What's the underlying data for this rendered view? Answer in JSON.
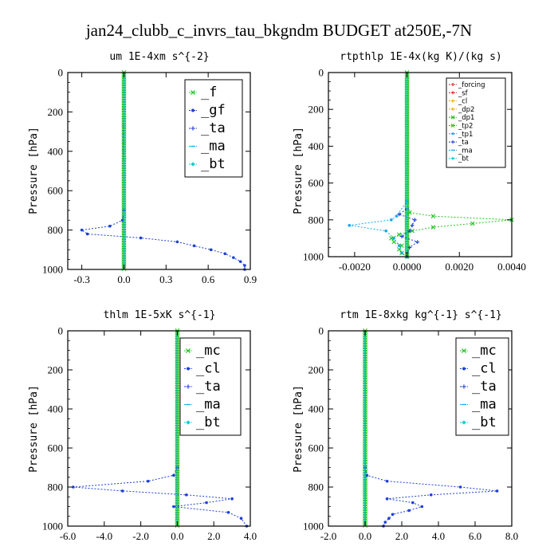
{
  "figure_title": "jan24_clubb_c_invrs_tau_bkgndm  BUDGET at250E,-7N",
  "colors": {
    "green": "#22c422",
    "red": "#e02020",
    "blue": "#1f3fd6",
    "cyan": "#14a8ee",
    "orange": "#f0a800",
    "teal": "#00d0d0"
  },
  "chart_data": [
    {
      "type": "line",
      "title": "um   1E-4xm s^{-2}",
      "ylabel": "Pressure [hPa]",
      "xlim": [
        -0.4,
        0.9
      ],
      "ylim": [
        1000,
        0
      ],
      "xticks": [
        -0.3,
        0.0,
        0.3,
        0.6,
        0.9
      ],
      "xtick_labels": [
        "-0.3",
        "0.0",
        "0.3",
        "0.6",
        "0.9"
      ],
      "yticks": [
        0,
        200,
        400,
        600,
        800,
        1000
      ],
      "ytick_labels": [
        "0",
        "200",
        "400",
        "600",
        "800",
        "1000"
      ],
      "legend_style": "big",
      "legend_position": "top-right",
      "series": [
        {
          "name": "_f",
          "color": "#22c422",
          "marker": "x",
          "pressure": [
            0,
            100,
            200,
            300,
            400,
            500,
            600,
            700,
            750,
            800,
            850,
            900,
            950,
            1000
          ],
          "values": [
            0,
            0,
            0,
            0,
            0,
            0,
            0,
            0,
            0,
            0,
            0,
            0,
            0,
            0
          ]
        },
        {
          "name": "_gf",
          "color": "#1f3fd6",
          "marker": "dot",
          "pressure": [
            0,
            100,
            200,
            300,
            400,
            500,
            600,
            700,
            750,
            780,
            800,
            820,
            840,
            860,
            880,
            900,
            920,
            940,
            960,
            980,
            1000
          ],
          "values": [
            0,
            0,
            0,
            -0.005,
            -0.005,
            0,
            0,
            0,
            -0.01,
            -0.1,
            -0.3,
            -0.26,
            0.12,
            0.38,
            0.5,
            0.62,
            0.72,
            0.78,
            0.83,
            0.86,
            0.86
          ]
        },
        {
          "name": "_ta",
          "color": "#1f3fd6",
          "marker": "plus",
          "pressure": [
            0,
            500,
            1000
          ],
          "values": [
            0,
            0,
            0
          ]
        },
        {
          "name": "_ma",
          "color": "#14a8ee",
          "marker": "dash",
          "pressure": [
            0,
            500,
            1000
          ],
          "values": [
            0,
            0,
            0
          ]
        },
        {
          "name": "_bt",
          "color": "#00d0d0",
          "marker": "diamond",
          "pressure": [
            0,
            500,
            1000
          ],
          "values": [
            0,
            0,
            0
          ]
        }
      ]
    },
    {
      "type": "line",
      "title": "rtpthlp   1E-4x(kg K)/(kg s)",
      "ylabel": "Pressure [hPa]",
      "xlim": [
        -0.003,
        0.004
      ],
      "ylim": [
        1000,
        0
      ],
      "xticks": [
        -0.002,
        0.0,
        0.002,
        0.004
      ],
      "xtick_labels": [
        "-0.0020",
        "0.0000",
        "0.0020",
        "0.0040"
      ],
      "yticks": [
        0,
        200,
        400,
        600,
        800,
        1000
      ],
      "ytick_labels": [
        "0",
        "200",
        "400",
        "600",
        "800",
        "1000"
      ],
      "legend_style": "small",
      "legend_position": "top-right",
      "series": [
        {
          "name": "_forcing",
          "color": "#e02020",
          "marker": "plus",
          "pressure": [
            0,
            200,
            400,
            600,
            800,
            1000
          ],
          "values": [
            0,
            0,
            0,
            0,
            0,
            0
          ]
        },
        {
          "name": "_sf",
          "color": "#e02020",
          "marker": "plus",
          "pressure": [
            0,
            500,
            1000
          ],
          "values": [
            0,
            0,
            0
          ]
        },
        {
          "name": "_cl",
          "color": "#f0a800",
          "marker": "plus",
          "pressure": [
            0,
            500,
            1000
          ],
          "values": [
            0,
            0,
            0
          ]
        },
        {
          "name": "_dp2",
          "color": "#f0a800",
          "marker": "plus",
          "pressure": [
            0,
            500,
            1000
          ],
          "values": [
            0,
            0,
            0
          ]
        },
        {
          "name": "_dp1",
          "color": "#22c422",
          "marker": "x",
          "pressure": [
            0,
            500,
            1000
          ],
          "values": [
            0,
            0,
            0
          ]
        },
        {
          "name": "_tp2",
          "color": "#22c422",
          "marker": "x",
          "pressure": [
            0,
            700,
            760,
            780,
            800,
            820,
            840,
            860,
            880,
            900,
            920,
            940,
            960,
            980,
            1000
          ],
          "values": [
            0,
            0,
            0.0001,
            0.001,
            0.004,
            0.0025,
            0.001,
            0.0002,
            -0.0003,
            -0.0006,
            -0.0005,
            -0.0002,
            -0.0003,
            -0.0002,
            0
          ]
        },
        {
          "name": "_tp1",
          "color": "#14a8ee",
          "marker": "dot",
          "pressure": [
            0,
            700,
            780,
            800,
            830,
            860,
            900,
            940,
            980,
            1000
          ],
          "values": [
            0,
            0,
            -0.0004,
            -0.0006,
            -0.0022,
            -0.0008,
            -0.0005,
            -0.0003,
            -0.0002,
            0
          ]
        },
        {
          "name": "_ta",
          "color": "#1f3fd6",
          "marker": "plus",
          "pressure": [
            0,
            740,
            770,
            800,
            830,
            860,
            890,
            920,
            950,
            980,
            1000
          ],
          "values": [
            0,
            0,
            -0.0003,
            0.0003,
            0.0002,
            0.0001,
            -0.0002,
            0.0004,
            0.0001,
            0,
            0
          ]
        },
        {
          "name": "_ma",
          "color": "#14a8ee",
          "marker": "dash",
          "pressure": [
            0,
            500,
            1000
          ],
          "values": [
            0,
            0,
            0
          ]
        },
        {
          "name": "_bt",
          "color": "#00d0d0",
          "marker": "diamond",
          "pressure": [
            0,
            500,
            1000
          ],
          "values": [
            0,
            0,
            0
          ]
        }
      ]
    },
    {
      "type": "line",
      "title": "thlm   1E-5xK s^{-1}",
      "ylabel": "Pressure [hPa]",
      "xlim": [
        -6.0,
        4.0
      ],
      "ylim": [
        1000,
        0
      ],
      "xticks": [
        -6,
        -4,
        -2,
        0,
        2,
        4
      ],
      "xtick_labels": [
        "-6.0",
        "-4.0",
        "-2.0",
        "0.0",
        "2.0",
        "4.0"
      ],
      "yticks": [
        0,
        200,
        400,
        600,
        800,
        1000
      ],
      "ytick_labels": [
        "0",
        "200",
        "400",
        "600",
        "800",
        "1000"
      ],
      "legend_style": "big",
      "legend_position": "top-right",
      "series": [
        {
          "name": "_mc",
          "color": "#22c422",
          "marker": "x",
          "pressure": [
            0,
            100,
            200,
            300,
            400,
            500,
            600,
            700,
            800,
            900,
            1000
          ],
          "values": [
            0,
            0,
            0,
            0,
            0,
            0,
            0,
            0,
            0,
            0,
            0
          ]
        },
        {
          "name": "_cl",
          "color": "#1f3fd6",
          "marker": "dot",
          "pressure": [
            0,
            700,
            740,
            770,
            800,
            820,
            840,
            860,
            880,
            900,
            930,
            960,
            1000
          ],
          "values": [
            0,
            0,
            -0.2,
            -1.6,
            -5.7,
            -3.0,
            0.5,
            3.0,
            1.6,
            -0.2,
            2.8,
            3.5,
            3.8
          ]
        },
        {
          "name": "_ta",
          "color": "#1f3fd6",
          "marker": "plus",
          "pressure": [
            0,
            500,
            1000
          ],
          "values": [
            0,
            0,
            0
          ]
        },
        {
          "name": "_ma",
          "color": "#14a8ee",
          "marker": "dash",
          "pressure": [
            0,
            500,
            1000
          ],
          "values": [
            0,
            0,
            0
          ]
        },
        {
          "name": "_bt",
          "color": "#00d0d0",
          "marker": "diamond",
          "pressure": [
            0,
            500,
            1000
          ],
          "values": [
            0,
            0,
            0
          ]
        }
      ]
    },
    {
      "type": "line",
      "title": "rtm   1E-8xkg kg^{-1} s^{-1}",
      "ylabel": "Pressure [hPa]",
      "xlim": [
        -2.0,
        8.0
      ],
      "ylim": [
        1000,
        0
      ],
      "xticks": [
        -2,
        0,
        2,
        4,
        6,
        8
      ],
      "xtick_labels": [
        "-2.0",
        "0.0",
        "2.0",
        "4.0",
        "6.0",
        "8.0"
      ],
      "yticks": [
        0,
        200,
        400,
        600,
        800,
        1000
      ],
      "ytick_labels": [
        "0",
        "200",
        "400",
        "600",
        "800",
        "1000"
      ],
      "legend_style": "big",
      "legend_position": "top-right",
      "series": [
        {
          "name": "_mc",
          "color": "#22c422",
          "marker": "x",
          "pressure": [
            0,
            100,
            200,
            300,
            400,
            500,
            600,
            700,
            800,
            900,
            1000
          ],
          "values": [
            0,
            0,
            0,
            0,
            0,
            0,
            0,
            0,
            0,
            0,
            0
          ]
        },
        {
          "name": "_cl",
          "color": "#1f3fd6",
          "marker": "dot",
          "pressure": [
            0,
            700,
            740,
            770,
            800,
            820,
            840,
            860,
            880,
            900,
            920,
            940,
            960,
            980,
            1000
          ],
          "values": [
            0,
            0,
            0.1,
            1.2,
            5.2,
            7.2,
            3.6,
            1.2,
            2.6,
            3.1,
            2.4,
            1.5,
            1.3,
            1.1,
            1.0
          ]
        },
        {
          "name": "_ta",
          "color": "#1f3fd6",
          "marker": "plus",
          "pressure": [
            0,
            500,
            1000
          ],
          "values": [
            0,
            0,
            0
          ]
        },
        {
          "name": "_ma",
          "color": "#14a8ee",
          "marker": "dash",
          "pressure": [
            0,
            500,
            1000
          ],
          "values": [
            0,
            0,
            0
          ]
        },
        {
          "name": "_bt",
          "color": "#00d0d0",
          "marker": "diamond",
          "pressure": [
            0,
            500,
            1000
          ],
          "values": [
            0,
            0,
            0
          ]
        }
      ]
    }
  ]
}
